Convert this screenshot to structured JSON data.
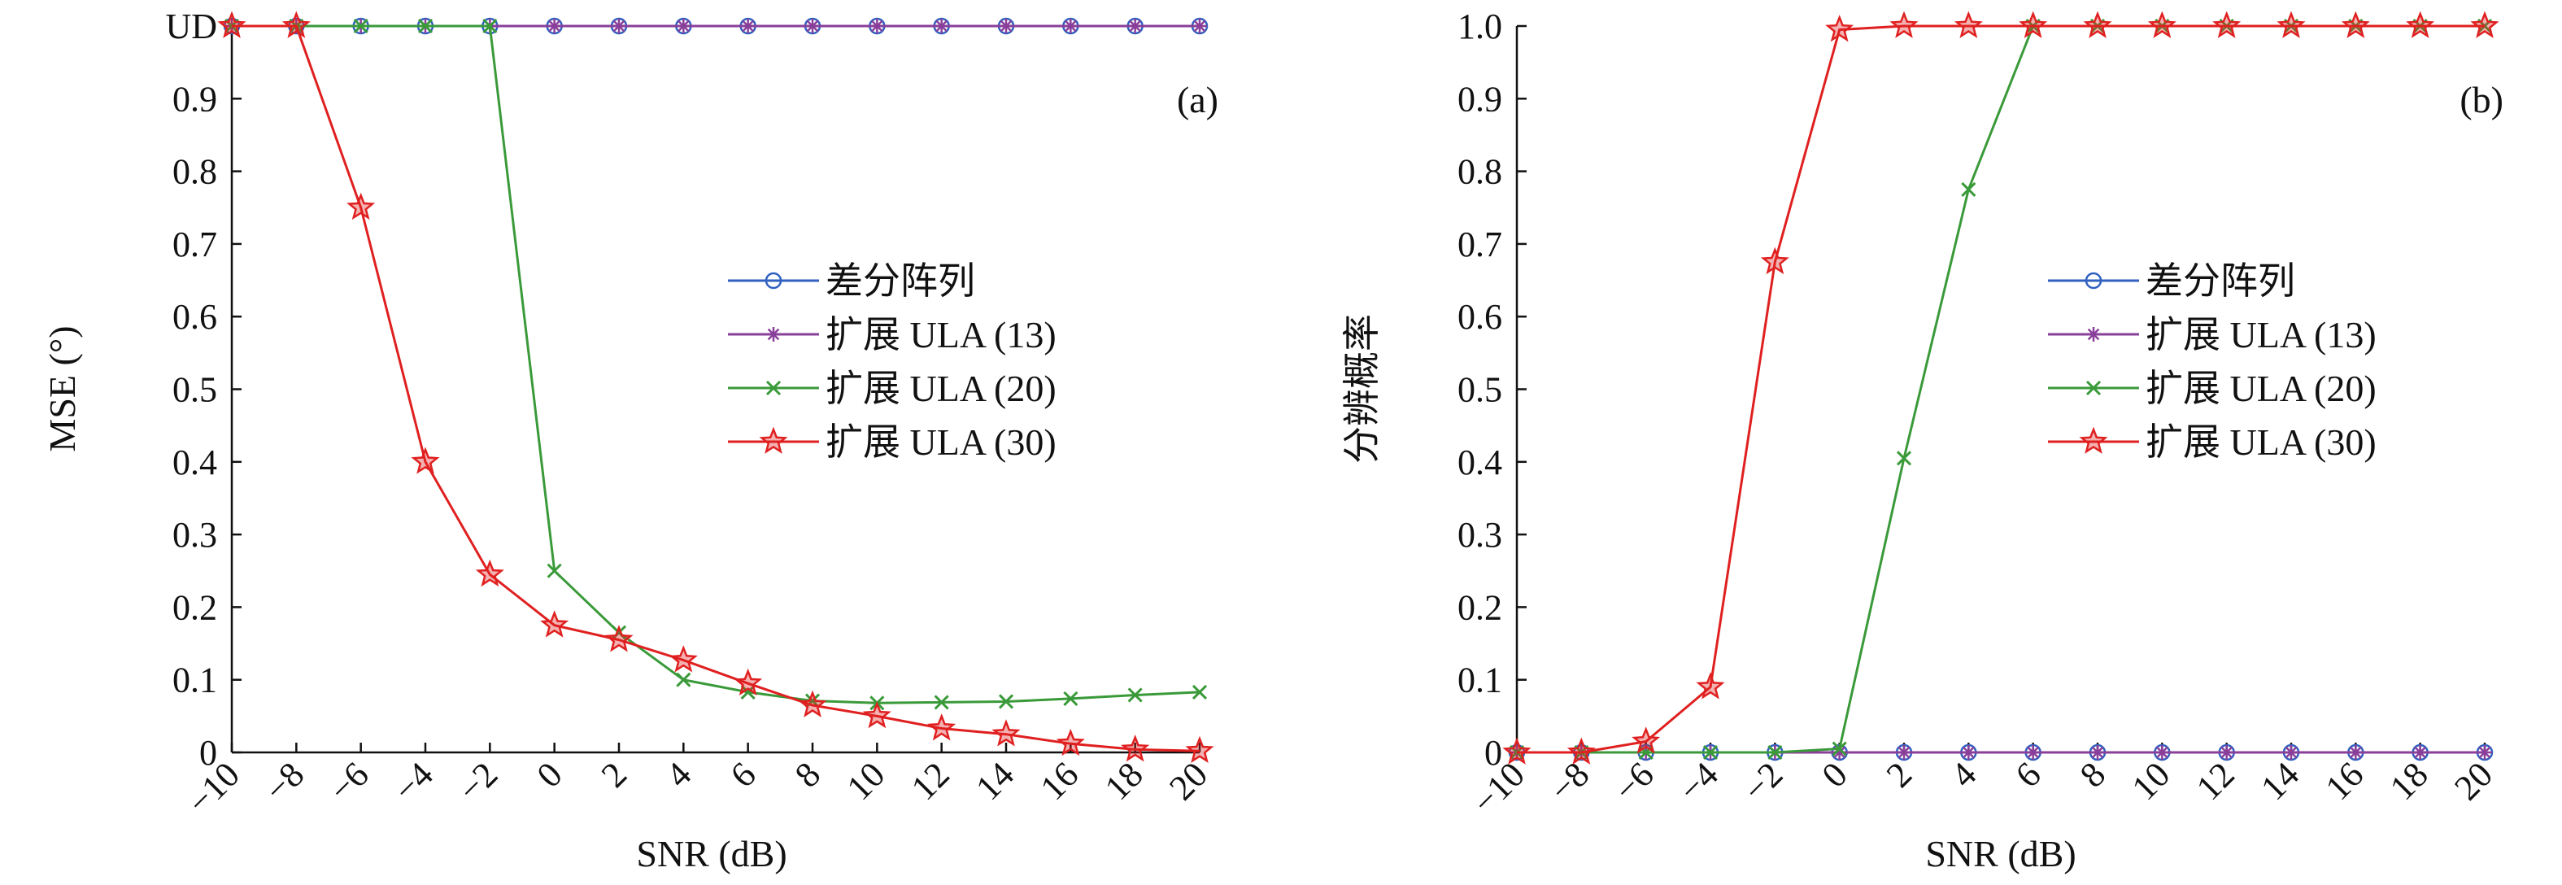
{
  "chart_data": [
    {
      "type": "line",
      "panel_label": "(a)",
      "xlabel": "SNR (dB)",
      "ylabel": "MSE (°)",
      "x": [
        -10,
        -8,
        -6,
        -4,
        -2,
        0,
        2,
        4,
        6,
        8,
        10,
        12,
        14,
        16,
        18,
        20
      ],
      "xlim": [
        -10,
        20
      ],
      "ylim": [
        0,
        1.0
      ],
      "xticks": [
        "−10",
        "−8",
        "−6",
        "−4",
        "−2",
        "0",
        "2",
        "4",
        "6",
        "8",
        "10",
        "12",
        "14",
        "16",
        "18",
        "20"
      ],
      "yticks": [
        "0",
        "0.1",
        "0.2",
        "0.3",
        "0.4",
        "0.5",
        "0.6",
        "0.7",
        "0.8",
        "0.9",
        "UD"
      ],
      "grid": false,
      "legend_position": "center-right",
      "series": [
        {
          "name": "差分阵列",
          "color": "#3060c0",
          "marker": "circle",
          "values": [
            1,
            1,
            1,
            1,
            1,
            1,
            1,
            1,
            1,
            1,
            1,
            1,
            1,
            1,
            1,
            1
          ]
        },
        {
          "name": "扩展 ULA (13)",
          "color": "#8a3f9a",
          "marker": "asterisk",
          "values": [
            1,
            1,
            1,
            1,
            1,
            1,
            1,
            1,
            1,
            1,
            1,
            1,
            1,
            1,
            1,
            1
          ]
        },
        {
          "name": "扩展 ULA (20)",
          "color": "#3a9a3a",
          "marker": "x",
          "values": [
            1,
            1,
            1,
            1,
            1,
            0.25,
            0.165,
            0.1,
            0.083,
            0.071,
            0.068,
            0.069,
            0.07,
            0.074,
            0.079,
            0.083
          ]
        },
        {
          "name": "扩展 ULA (30)",
          "color": "#e02020",
          "marker": "star",
          "values": [
            1,
            1,
            0.75,
            0.4,
            0.245,
            0.175,
            0.155,
            0.127,
            0.095,
            0.065,
            0.05,
            0.033,
            0.025,
            0.012,
            0.004,
            0.002
          ]
        }
      ]
    },
    {
      "type": "line",
      "panel_label": "(b)",
      "xlabel": "SNR (dB)",
      "ylabel": "分辨概率",
      "x": [
        -10,
        -8,
        -6,
        -4,
        -2,
        0,
        2,
        4,
        6,
        8,
        10,
        12,
        14,
        16,
        18,
        20
      ],
      "xlim": [
        -10,
        20
      ],
      "ylim": [
        0,
        1.0
      ],
      "xticks": [
        "−10",
        "−8",
        "−6",
        "−4",
        "−2",
        "0",
        "2",
        "4",
        "6",
        "8",
        "10",
        "12",
        "14",
        "16",
        "18",
        "20"
      ],
      "yticks": [
        "0",
        "0.1",
        "0.2",
        "0.3",
        "0.4",
        "0.5",
        "0.6",
        "0.7",
        "0.8",
        "0.9",
        "1.0"
      ],
      "grid": false,
      "legend_position": "center-right",
      "series": [
        {
          "name": "差分阵列",
          "color": "#3060c0",
          "marker": "circle",
          "values": [
            0,
            0,
            0,
            0,
            0,
            0,
            0,
            0,
            0,
            0,
            0,
            0,
            0,
            0,
            0,
            0
          ]
        },
        {
          "name": "扩展 ULA (13)",
          "color": "#8a3f9a",
          "marker": "asterisk",
          "values": [
            0,
            0,
            0,
            0,
            0,
            0,
            0,
            0,
            0,
            0,
            0,
            0,
            0,
            0,
            0,
            0
          ]
        },
        {
          "name": "扩展 ULA (20)",
          "color": "#3a9a3a",
          "marker": "x",
          "values": [
            0,
            0,
            0,
            0,
            0,
            0.005,
            0.405,
            0.775,
            1,
            1,
            1,
            1,
            1,
            1,
            1,
            1
          ]
        },
        {
          "name": "扩展 ULA (30)",
          "color": "#e02020",
          "marker": "star",
          "values": [
            0,
            0,
            0.015,
            0.09,
            0.675,
            0.995,
            1,
            1,
            1,
            1,
            1,
            1,
            1,
            1,
            1,
            1
          ]
        }
      ]
    }
  ]
}
